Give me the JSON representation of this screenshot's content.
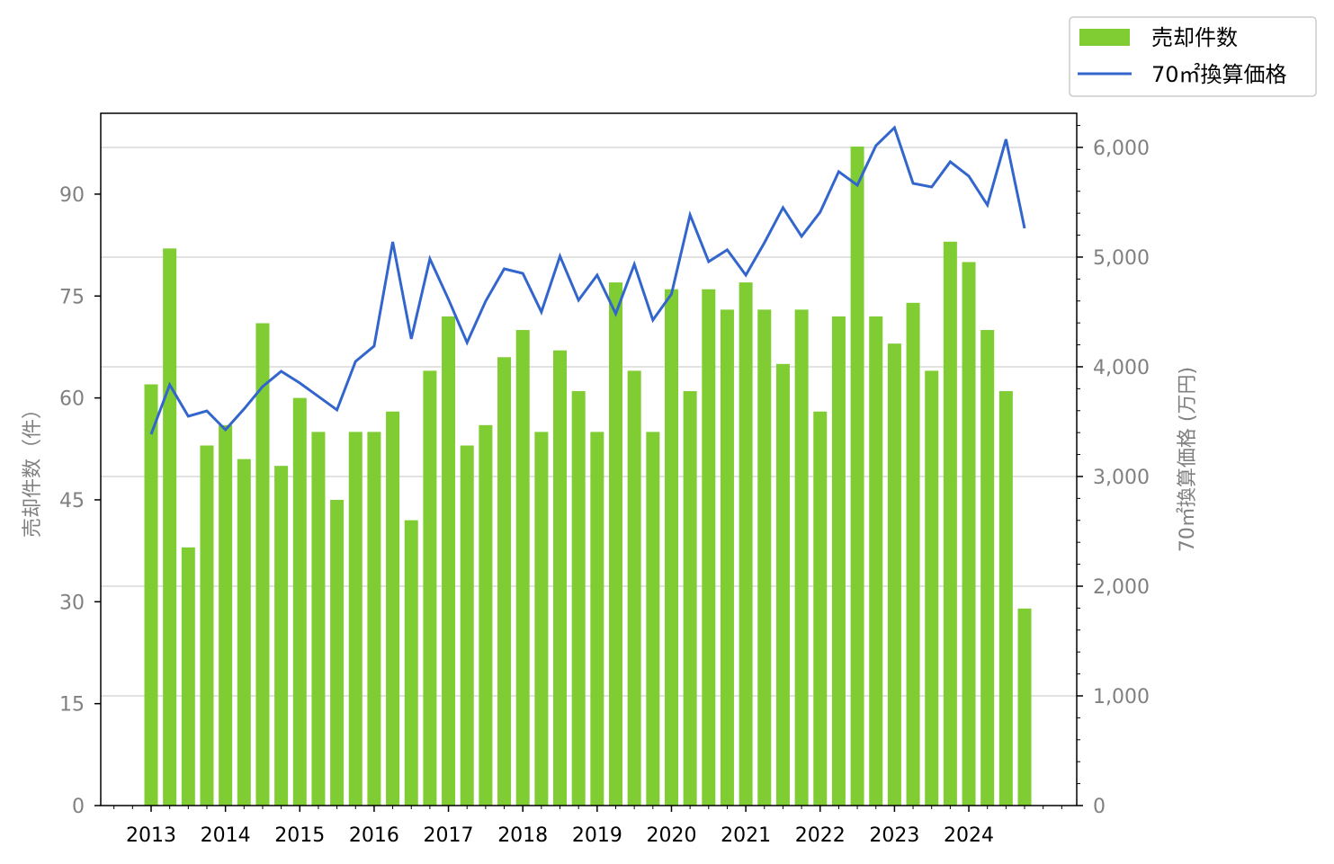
{
  "chart_data": {
    "type": "bar+line",
    "categories": [
      "2013Q1",
      "2013Q2",
      "2013Q3",
      "2013Q4",
      "2014Q1",
      "2014Q2",
      "2014Q3",
      "2014Q4",
      "2015Q1",
      "2015Q2",
      "2015Q3",
      "2015Q4",
      "2016Q1",
      "2016Q2",
      "2016Q3",
      "2016Q4",
      "2017Q1",
      "2017Q2",
      "2017Q3",
      "2017Q4",
      "2018Q1",
      "2018Q2",
      "2018Q3",
      "2018Q4",
      "2019Q1",
      "2019Q2",
      "2019Q3",
      "2019Q4",
      "2020Q1",
      "2020Q2",
      "2020Q3",
      "2020Q4",
      "2021Q1",
      "2021Q2",
      "2021Q3",
      "2021Q4",
      "2022Q1",
      "2022Q2",
      "2022Q3",
      "2022Q4",
      "2023Q1",
      "2023Q2",
      "2023Q3",
      "2023Q4",
      "2024Q1",
      "2024Q2",
      "2024Q3",
      "2024Q4"
    ],
    "x_tick_labels": [
      "2013",
      "2014",
      "2015",
      "2016",
      "2017",
      "2018",
      "2019",
      "2020",
      "2021",
      "2022",
      "2023",
      "2024"
    ],
    "series": [
      {
        "name": "売却件数",
        "type": "bar",
        "axis": "left",
        "color": "#7fcc33",
        "values": [
          62,
          82,
          38,
          53,
          56,
          51,
          71,
          50,
          60,
          55,
          45,
          55,
          55,
          58,
          42,
          64,
          72,
          53,
          56,
          66,
          70,
          55,
          67,
          61,
          55,
          77,
          64,
          55,
          76,
          61,
          76,
          73,
          77,
          73,
          65,
          73,
          58,
          72,
          97,
          72,
          68,
          74,
          64,
          83,
          80,
          70,
          61,
          29
        ]
      },
      {
        "name": "70㎡換算価格",
        "type": "line",
        "axis": "right",
        "color": "#3366cc",
        "values": [
          3385,
          3836,
          3549,
          3598,
          3426,
          3615,
          3820,
          3959,
          3852,
          3730,
          3607,
          4049,
          4189,
          5139,
          4254,
          4984,
          4615,
          4221,
          4598,
          4893,
          4852,
          4500,
          5008,
          4607,
          4836,
          4484,
          4934,
          4426,
          4664,
          5385,
          4959,
          5066,
          4836,
          5131,
          5451,
          5189,
          5410,
          5779,
          5656,
          6016,
          6180,
          5672,
          5639,
          5869,
          5738,
          5475,
          6074,
          5262
        ]
      }
    ],
    "ylabel_left": "売却件数（件）",
    "ylabel_right": "70㎡換算価格 (万円)",
    "ylim_left": [
      0,
      101.9
    ],
    "ylim_right": [
      0,
      6311
    ],
    "left_ticks": [
      "0",
      "15",
      "30",
      "45",
      "60",
      "75",
      "90"
    ],
    "right_ticks": [
      "0",
      "1,000",
      "2,000",
      "3,000",
      "4,000",
      "5,000",
      "6,000"
    ],
    "grid": "horizontal (right axis)",
    "legend_position": "top-right outside"
  }
}
